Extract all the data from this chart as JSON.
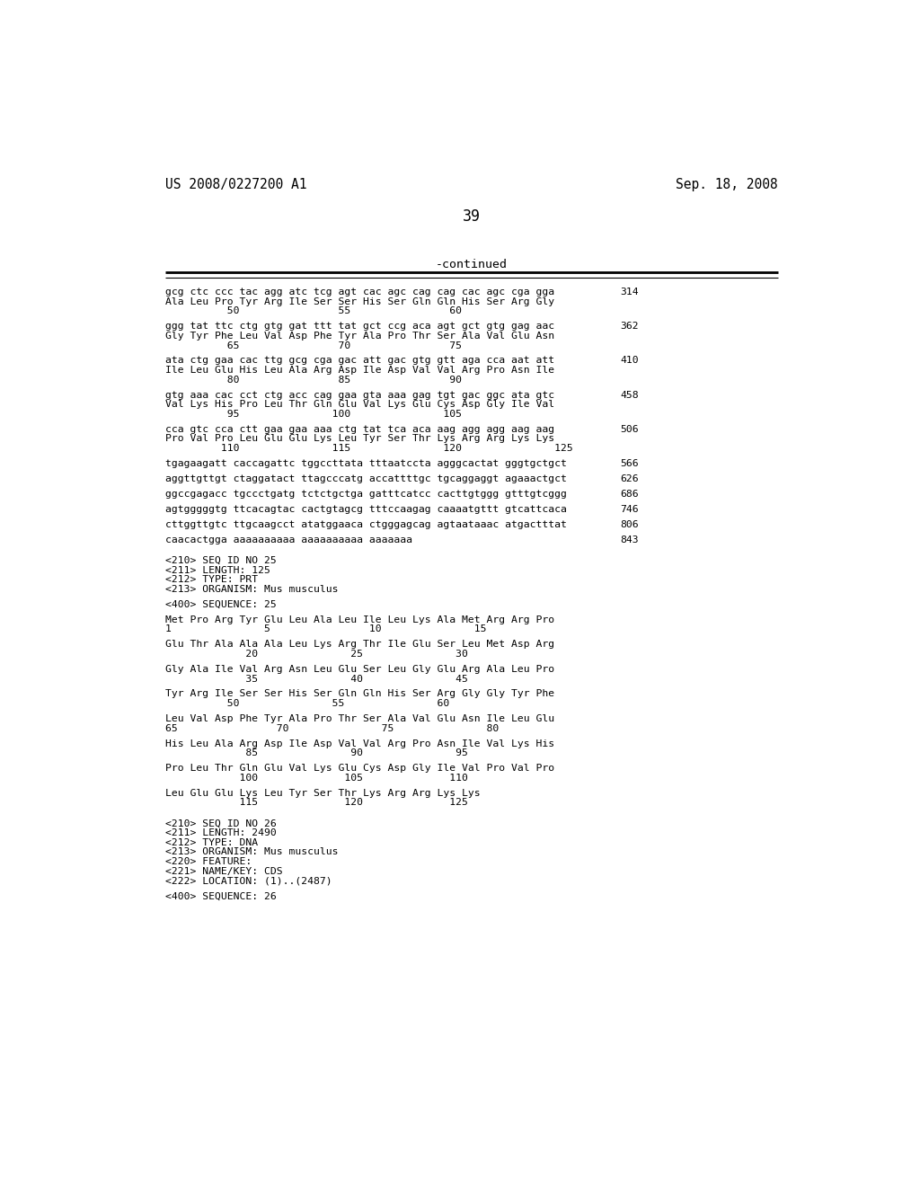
{
  "header_left": "US 2008/0227200 A1",
  "header_right": "Sep. 18, 2008",
  "page_number": "39",
  "continued_label": "-continued",
  "background_color": "#ffffff",
  "text_color": "#000000",
  "content_lines": [
    {
      "text": "gcg ctc ccc tac agg atc tcg agt cac agc cag cag cac agc cga gga",
      "number": "314"
    },
    {
      "text": "Ala Leu Pro Tyr Arg Ile Ser Ser His Ser Gln Gln His Ser Arg Gly",
      "number": ""
    },
    {
      "text": "          50                55                60",
      "number": ""
    },
    {
      "text": "",
      "number": ""
    },
    {
      "text": "ggg tat ttc ctg gtg gat ttt tat gct ccg aca agt gct gtg gag aac",
      "number": "362"
    },
    {
      "text": "Gly Tyr Phe Leu Val Asp Phe Tyr Ala Pro Thr Ser Ala Val Glu Asn",
      "number": ""
    },
    {
      "text": "          65                70                75",
      "number": ""
    },
    {
      "text": "",
      "number": ""
    },
    {
      "text": "ata ctg gaa cac ttg gcg cga gac att gac gtg gtt aga cca aat att",
      "number": "410"
    },
    {
      "text": "Ile Leu Glu His Leu Ala Arg Asp Ile Asp Val Val Arg Pro Asn Ile",
      "number": ""
    },
    {
      "text": "          80                85                90",
      "number": ""
    },
    {
      "text": "",
      "number": ""
    },
    {
      "text": "gtg aaa cac cct ctg acc cag gaa gta aaa gag tgt gac ggc ata gtc",
      "number": "458"
    },
    {
      "text": "Val Lys His Pro Leu Thr Gln Glu Val Lys Glu Cys Asp Gly Ile Val",
      "number": ""
    },
    {
      "text": "          95               100               105",
      "number": ""
    },
    {
      "text": "",
      "number": ""
    },
    {
      "text": "cca gtc cca ctt gaa gaa aaa ctg tat tca aca aag agg agg aag aag",
      "number": "506"
    },
    {
      "text": "Pro Val Pro Leu Glu Glu Lys Leu Tyr Ser Thr Lys Arg Arg Lys Lys",
      "number": ""
    },
    {
      "text": "         110               115               120               125",
      "number": ""
    },
    {
      "text": "",
      "number": ""
    },
    {
      "text": "tgagaagatt caccagattc tggccttata tttaatccta agggcactat gggtgctgct",
      "number": "566"
    },
    {
      "text": "",
      "number": ""
    },
    {
      "text": "aggttgttgt ctaggatact ttagcccatg accattttgc tgcaggaggt agaaactgct",
      "number": "626"
    },
    {
      "text": "",
      "number": ""
    },
    {
      "text": "ggccgagacc tgccctgatg tctctgctga gatttcatcc cacttgtggg gtttgtcggg",
      "number": "686"
    },
    {
      "text": "",
      "number": ""
    },
    {
      "text": "agtgggggtg ttcacagtac cactgtagcg tttccaagag caaaatgttt gtcattcaca",
      "number": "746"
    },
    {
      "text": "",
      "number": ""
    },
    {
      "text": "cttggttgtc ttgcaagcct atatggaaca ctgggagcag agtaataaac atgactttat",
      "number": "806"
    },
    {
      "text": "",
      "number": ""
    },
    {
      "text": "caacactgga aaaaaaaaaa aaaaaaaaaa aaaaaaa",
      "number": "843"
    },
    {
      "text": "",
      "number": ""
    },
    {
      "text": "",
      "number": ""
    },
    {
      "text": "<210> SEQ ID NO 25",
      "number": ""
    },
    {
      "text": "<211> LENGTH: 125",
      "number": ""
    },
    {
      "text": "<212> TYPE: PRT",
      "number": ""
    },
    {
      "text": "<213> ORGANISM: Mus musculus",
      "number": ""
    },
    {
      "text": "",
      "number": ""
    },
    {
      "text": "<400> SEQUENCE: 25",
      "number": ""
    },
    {
      "text": "",
      "number": ""
    },
    {
      "text": "Met Pro Arg Tyr Glu Leu Ala Leu Ile Leu Lys Ala Met Arg Arg Pro",
      "number": ""
    },
    {
      "text": "1               5                10               15",
      "number": ""
    },
    {
      "text": "",
      "number": ""
    },
    {
      "text": "Glu Thr Ala Ala Ala Leu Lys Arg Thr Ile Glu Ser Leu Met Asp Arg",
      "number": ""
    },
    {
      "text": "             20               25               30",
      "number": ""
    },
    {
      "text": "",
      "number": ""
    },
    {
      "text": "Gly Ala Ile Val Arg Asn Leu Glu Ser Leu Gly Glu Arg Ala Leu Pro",
      "number": ""
    },
    {
      "text": "             35               40               45",
      "number": ""
    },
    {
      "text": "",
      "number": ""
    },
    {
      "text": "Tyr Arg Ile Ser Ser His Ser Gln Gln His Ser Arg Gly Gly Tyr Phe",
      "number": ""
    },
    {
      "text": "          50               55               60",
      "number": ""
    },
    {
      "text": "",
      "number": ""
    },
    {
      "text": "Leu Val Asp Phe Tyr Ala Pro Thr Ser Ala Val Glu Asn Ile Leu Glu",
      "number": ""
    },
    {
      "text": "65                70               75               80",
      "number": ""
    },
    {
      "text": "",
      "number": ""
    },
    {
      "text": "His Leu Ala Arg Asp Ile Asp Val Val Arg Pro Asn Ile Val Lys His",
      "number": ""
    },
    {
      "text": "             85               90               95",
      "number": ""
    },
    {
      "text": "",
      "number": ""
    },
    {
      "text": "Pro Leu Thr Gln Glu Val Lys Glu Cys Asp Gly Ile Val Pro Val Pro",
      "number": ""
    },
    {
      "text": "            100              105              110",
      "number": ""
    },
    {
      "text": "",
      "number": ""
    },
    {
      "text": "Leu Glu Glu Lys Leu Tyr Ser Thr Lys Arg Arg Lys Lys",
      "number": ""
    },
    {
      "text": "            115              120              125",
      "number": ""
    },
    {
      "text": "",
      "number": ""
    },
    {
      "text": "",
      "number": ""
    },
    {
      "text": "<210> SEQ ID NO 26",
      "number": ""
    },
    {
      "text": "<211> LENGTH: 2490",
      "number": ""
    },
    {
      "text": "<212> TYPE: DNA",
      "number": ""
    },
    {
      "text": "<213> ORGANISM: Mus musculus",
      "number": ""
    },
    {
      "text": "<220> FEATURE:",
      "number": ""
    },
    {
      "text": "<221> NAME/KEY: CDS",
      "number": ""
    },
    {
      "text": "<222> LOCATION: (1)..(2487)",
      "number": ""
    },
    {
      "text": "",
      "number": ""
    },
    {
      "text": "<400> SEQUENCE: 26",
      "number": ""
    }
  ]
}
